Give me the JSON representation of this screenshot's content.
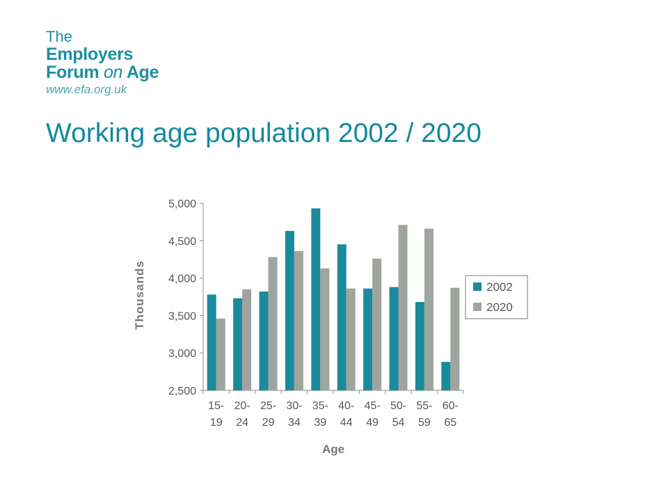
{
  "logo": {
    "line1": "The",
    "line2": "Employers",
    "line3a": "Forum",
    "line3b": "on",
    "line3c": "Age",
    "url": "www.efa.org.uk"
  },
  "title": "Working age population 2002 / 2020",
  "colors": {
    "brand": "#1b8fa0",
    "series_2002": "#1a8a9c",
    "series_2020": "#a0a49f"
  },
  "chart_data": {
    "type": "bar",
    "categories": [
      "15-19",
      "20-24",
      "25-29",
      "30-34",
      "35-39",
      "40-44",
      "45-49",
      "50-54",
      "55-59",
      "60-65"
    ],
    "category_labels": [
      [
        "15-",
        "19"
      ],
      [
        "20-",
        "24"
      ],
      [
        "25-",
        "29"
      ],
      [
        "30-",
        "34"
      ],
      [
        "35-",
        "39"
      ],
      [
        "40-",
        "44"
      ],
      [
        "45-",
        "49"
      ],
      [
        "50-",
        "54"
      ],
      [
        "55-",
        "59"
      ],
      [
        "60-",
        "65"
      ]
    ],
    "series": [
      {
        "name": "2002",
        "values": [
          3780,
          3730,
          3820,
          4630,
          4930,
          4450,
          3860,
          3880,
          3680,
          2880
        ]
      },
      {
        "name": "2020",
        "values": [
          3460,
          3850,
          4280,
          4360,
          4130,
          3860,
          4260,
          4710,
          4660,
          3870
        ]
      }
    ],
    "xlabel": "Age",
    "ylabel": "Thousands",
    "ylim": [
      2500,
      5000
    ],
    "yticks": [
      2500,
      3000,
      3500,
      4000,
      4500,
      5000
    ],
    "ytick_labels": [
      "2,500",
      "3,000",
      "3,500",
      "4,000",
      "4,500",
      "5,000"
    ],
    "legend_position": "right",
    "grid": false
  }
}
